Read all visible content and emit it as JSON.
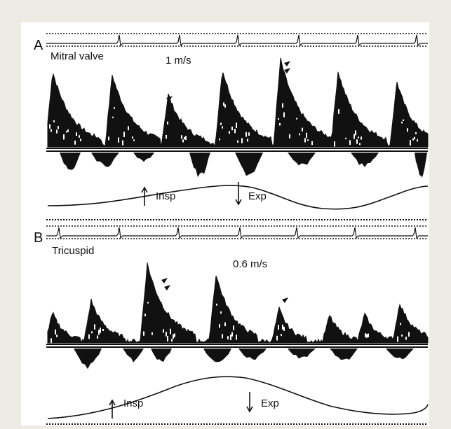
{
  "panel_a": {
    "letter": "A",
    "title": "Mitral valve",
    "scale": "1 m/s",
    "insp": "Insp",
    "exp": "Exp"
  },
  "panel_b": {
    "letter": "B",
    "title": "Tricuspid",
    "scale": "0.6 m/s",
    "insp": "Insp",
    "exp": "Exp"
  },
  "colors": {
    "background": "#ecece4",
    "figure": "#ffffff",
    "ink": "#111111"
  }
}
